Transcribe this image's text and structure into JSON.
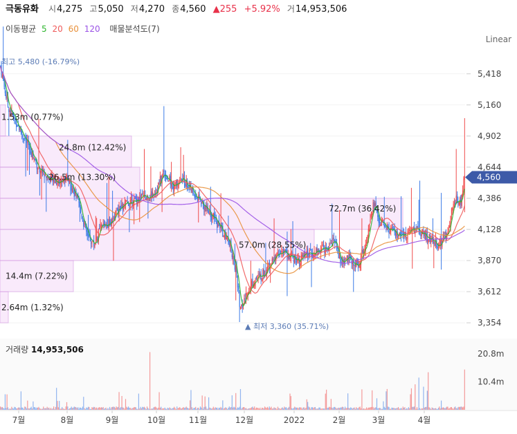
{
  "header": {
    "name": "극동유화",
    "open_label": "시",
    "open": "4,275",
    "high_label": "고",
    "high": "5,050",
    "low_label": "저",
    "low": "4,270",
    "close_label": "종",
    "close": "4,560",
    "change": "▲255",
    "change_pct": "+5.92%",
    "volume_label": "거",
    "volume": "14,953,506"
  },
  "ma_legend": {
    "title": "이동평균",
    "p5": "5",
    "p20": "20",
    "p60": "60",
    "p120": "120",
    "vp": "매물분석도(7)",
    "colors": {
      "p5": "#2db52d",
      "p20": "#ef5a5a",
      "p60": "#e8903a",
      "p120": "#9a52e6"
    }
  },
  "scale_mode": "Linear",
  "chart_data": {
    "type": "candlestick",
    "y_ticks": [
      "5,418",
      "5,160",
      "4,902",
      "4,644",
      "4,386",
      "4,128",
      "3,870",
      "3,612",
      "3,354"
    ],
    "y_tick_values": [
      5418,
      5160,
      4902,
      4644,
      4386,
      4128,
      3870,
      3612,
      3354
    ],
    "ylim": [
      3280,
      5600
    ],
    "x_ticks": [
      "7월",
      "8월",
      "9월",
      "10월",
      "11월",
      "12월",
      "2022",
      "2월",
      "3월",
      "4월"
    ],
    "current_price_label": "4,560",
    "current_price": 4560,
    "high_annotation": "최고 5,480 (-16.79%)",
    "low_annotation": "▲ 최저 3,360 (35.71%)",
    "volume_profile": [
      {
        "label": "2.64m (1.32%)",
        "price_from": 3354,
        "price_to": 3612
      },
      {
        "label": "14.4m (7.22%)",
        "price_from": 3612,
        "price_to": 3870
      },
      {
        "label": "57.0m (28.55%)",
        "price_from": 3870,
        "price_to": 4128
      },
      {
        "label": "72.7m (36.42%)",
        "price_from": 4128,
        "price_to": 4386
      },
      {
        "label": "26.5m (13.30%)",
        "price_from": 4386,
        "price_to": 4644
      },
      {
        "label": "24.8m (12.42%)",
        "price_from": 4644,
        "price_to": 4902
      },
      {
        "label": "1.53m (0.77%)",
        "price_from": 4902,
        "price_to": 5160
      }
    ],
    "volume_panel": {
      "title": "거래량",
      "value": "14,953,506",
      "y_ticks": [
        "20.8m",
        "10.4m"
      ],
      "y_tick_values": [
        20.8,
        10.4
      ],
      "ylim": [
        0,
        26
      ]
    },
    "series": [
      {
        "name": "5",
        "color": "#2db52d"
      },
      {
        "name": "20",
        "color": "#ef5a5a"
      },
      {
        "name": "60",
        "color": "#e8903a"
      },
      {
        "name": "120",
        "color": "#9a52e6"
      }
    ],
    "keypoints": [
      [
        0,
        5480
      ],
      [
        8,
        5150
      ],
      [
        18,
        5000
      ],
      [
        28,
        4850
      ],
      [
        40,
        4650
      ],
      [
        52,
        4550
      ],
      [
        62,
        4520
      ],
      [
        72,
        4560
      ],
      [
        82,
        4380
      ],
      [
        92,
        4100
      ],
      [
        100,
        4000
      ],
      [
        108,
        4150
      ],
      [
        118,
        4200
      ],
      [
        128,
        4300
      ],
      [
        138,
        4350
      ],
      [
        148,
        4380
      ],
      [
        158,
        4400
      ],
      [
        166,
        4450
      ],
      [
        175,
        4600
      ],
      [
        185,
        4480
      ],
      [
        195,
        4550
      ],
      [
        205,
        4450
      ],
      [
        215,
        4350
      ],
      [
        225,
        4250
      ],
      [
        235,
        4150
      ],
      [
        245,
        4000
      ],
      [
        252,
        3800
      ],
      [
        257,
        3450
      ],
      [
        262,
        3560
      ],
      [
        270,
        3700
      ],
      [
        280,
        3750
      ],
      [
        290,
        3850
      ],
      [
        300,
        3950
      ],
      [
        310,
        3900
      ],
      [
        320,
        3880
      ],
      [
        330,
        3920
      ],
      [
        340,
        3950
      ],
      [
        350,
        3980
      ],
      [
        358,
        4050
      ],
      [
        364,
        3850
      ],
      [
        372,
        3900
      ],
      [
        382,
        3820
      ],
      [
        388,
        3950
      ],
      [
        392,
        4050
      ],
      [
        396,
        4250
      ],
      [
        400,
        4350
      ],
      [
        405,
        4200
      ],
      [
        412,
        4150
      ],
      [
        420,
        4100
      ],
      [
        430,
        4050
      ],
      [
        440,
        4150
      ],
      [
        450,
        4100
      ],
      [
        460,
        4050
      ],
      [
        470,
        4000
      ],
      [
        478,
        4100
      ],
      [
        484,
        4300
      ],
      [
        488,
        4380
      ],
      [
        493,
        4360
      ],
      [
        497,
        4560
      ]
    ]
  }
}
